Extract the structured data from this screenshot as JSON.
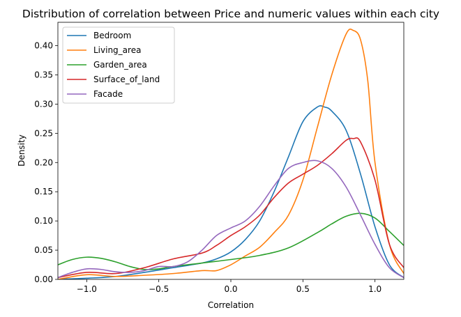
{
  "chart_data": {
    "type": "line",
    "title": "Distribution of correlation between Price and numeric values within each city",
    "xlabel": "Correlation",
    "ylabel": "Density",
    "xlim": [
      -1.2,
      1.2
    ],
    "ylim": [
      0,
      0.44
    ],
    "xticks": [
      -1.0,
      -0.5,
      0.0,
      0.5,
      1.0
    ],
    "xtick_labels": [
      "−1.0",
      "−0.5",
      "0.0",
      "0.5",
      "1.0"
    ],
    "yticks": [
      0.0,
      0.05,
      0.1,
      0.15,
      0.2,
      0.25,
      0.3,
      0.35,
      0.4
    ],
    "ytick_labels": [
      "0.00",
      "0.05",
      "0.10",
      "0.15",
      "0.20",
      "0.25",
      "0.30",
      "0.35",
      "0.40"
    ],
    "grid": false,
    "legend_position": "top-left",
    "series": [
      {
        "name": "Bedroom",
        "color": "#1f77b4",
        "x": [
          -1.2,
          -1.0,
          -0.8,
          -0.6,
          -0.4,
          -0.2,
          -0.1,
          0.0,
          0.1,
          0.2,
          0.3,
          0.4,
          0.5,
          0.6,
          0.65,
          0.7,
          0.8,
          0.9,
          1.0,
          1.1,
          1.2
        ],
        "y": [
          0.0,
          0.002,
          0.005,
          0.012,
          0.02,
          0.028,
          0.035,
          0.047,
          0.068,
          0.1,
          0.15,
          0.21,
          0.27,
          0.295,
          0.295,
          0.288,
          0.255,
          0.18,
          0.09,
          0.025,
          0.003
        ]
      },
      {
        "name": "Living_area",
        "color": "#ff7f0e",
        "x": [
          -1.2,
          -1.0,
          -0.8,
          -0.6,
          -0.4,
          -0.2,
          -0.1,
          0.0,
          0.1,
          0.2,
          0.3,
          0.4,
          0.5,
          0.6,
          0.7,
          0.8,
          0.85,
          0.9,
          0.95,
          1.0,
          1.1,
          1.2
        ],
        "y": [
          0.0,
          0.008,
          0.005,
          0.007,
          0.01,
          0.015,
          0.015,
          0.025,
          0.04,
          0.055,
          0.08,
          0.11,
          0.17,
          0.26,
          0.35,
          0.42,
          0.426,
          0.41,
          0.34,
          0.2,
          0.06,
          0.01
        ]
      },
      {
        "name": "Garden_area",
        "color": "#2ca02c",
        "x": [
          -1.2,
          -1.1,
          -1.0,
          -0.9,
          -0.8,
          -0.7,
          -0.6,
          -0.5,
          -0.4,
          -0.2,
          0.0,
          0.2,
          0.4,
          0.6,
          0.7,
          0.8,
          0.9,
          1.0,
          1.1,
          1.2
        ],
        "y": [
          0.025,
          0.034,
          0.038,
          0.036,
          0.03,
          0.022,
          0.017,
          0.018,
          0.022,
          0.028,
          0.034,
          0.041,
          0.054,
          0.08,
          0.095,
          0.108,
          0.113,
          0.105,
          0.082,
          0.058
        ]
      },
      {
        "name": "Surface_of_land",
        "color": "#d62728",
        "x": [
          -1.2,
          -1.0,
          -0.8,
          -0.6,
          -0.4,
          -0.2,
          -0.1,
          0.0,
          0.1,
          0.2,
          0.3,
          0.4,
          0.5,
          0.6,
          0.7,
          0.8,
          0.85,
          0.9,
          1.0,
          1.1,
          1.2
        ],
        "y": [
          0.003,
          0.012,
          0.01,
          0.02,
          0.035,
          0.045,
          0.058,
          0.075,
          0.09,
          0.11,
          0.14,
          0.165,
          0.18,
          0.195,
          0.215,
          0.238,
          0.241,
          0.235,
          0.17,
          0.06,
          0.02
        ]
      },
      {
        "name": "Facade",
        "color": "#9467bd",
        "x": [
          -1.2,
          -1.1,
          -1.0,
          -0.9,
          -0.8,
          -0.7,
          -0.6,
          -0.5,
          -0.4,
          -0.3,
          -0.2,
          -0.1,
          0.0,
          0.1,
          0.2,
          0.3,
          0.4,
          0.5,
          0.6,
          0.7,
          0.8,
          0.9,
          1.0,
          1.1,
          1.2
        ],
        "y": [
          0.003,
          0.012,
          0.018,
          0.017,
          0.013,
          0.012,
          0.015,
          0.022,
          0.022,
          0.03,
          0.05,
          0.075,
          0.088,
          0.1,
          0.125,
          0.16,
          0.19,
          0.2,
          0.203,
          0.19,
          0.158,
          0.11,
          0.06,
          0.02,
          0.003
        ]
      }
    ]
  }
}
